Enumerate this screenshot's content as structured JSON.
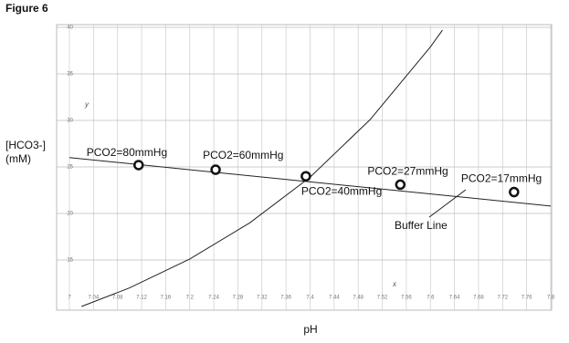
{
  "chart_data": {
    "type": "line",
    "title": "Figure 6",
    "y_label": [
      "[HCO3-]",
      "(mM)"
    ],
    "x_label": "pH",
    "x_axis_letter": "x",
    "y_axis_letter": "y",
    "xlim": [
      7,
      7.8
    ],
    "ylim": [
      10,
      40
    ],
    "xticks": [
      7,
      7.04,
      7.08,
      7.12,
      7.16,
      7.2,
      7.24,
      7.28,
      7.32,
      7.36,
      7.4,
      7.44,
      7.48,
      7.52,
      7.56,
      7.6,
      7.64,
      7.68,
      7.72,
      7.76,
      7.8
    ],
    "yticks": [
      15,
      20,
      25,
      30,
      35,
      40
    ],
    "grid": true,
    "curve": {
      "color": "#222222",
      "x": [
        7.02,
        7.1,
        7.2,
        7.3,
        7.4,
        7.5,
        7.6,
        7.62
      ],
      "y": [
        10.0,
        12.0,
        15.1,
        19.0,
        23.9,
        30.1,
        37.9,
        39.7
      ]
    },
    "buffer_line": {
      "label": "Buffer Line",
      "color": "#222222",
      "x": [
        7.0,
        7.8
      ],
      "y": [
        26.0,
        20.8
      ]
    },
    "points": {
      "x": [
        7.115,
        7.243,
        7.393,
        7.55,
        7.739
      ],
      "y": [
        25.2,
        24.7,
        24.0,
        23.1,
        22.3
      ],
      "labels": [
        "PCO2=80mmHg",
        "PCO2=60mmHg",
        "PCO2=40mmHg",
        "PCO2=27mmHg",
        "PCO2=17mmHg"
      ]
    }
  }
}
